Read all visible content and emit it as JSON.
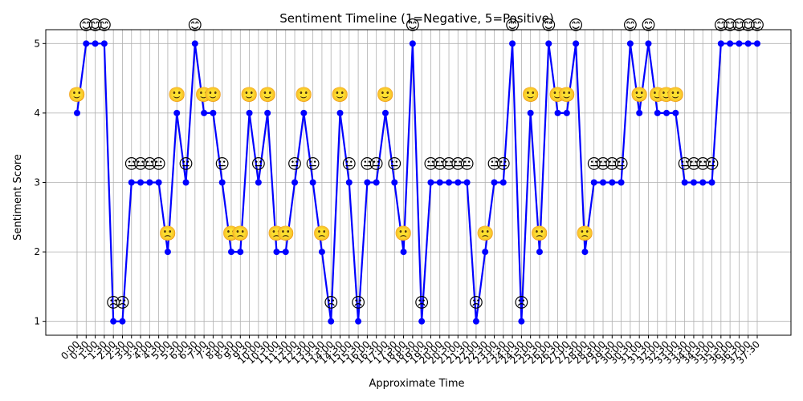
{
  "chart_data": {
    "type": "line",
    "title": "Sentiment Timeline (1=Negative, 5=Positive)",
    "xlabel": "Approximate Time",
    "ylabel": "Sentiment Score",
    "ylim": [
      0.8,
      5.2
    ],
    "yticks": [
      1,
      2,
      3,
      4,
      5
    ],
    "grid": true,
    "line_color": "#0000ff",
    "marker": "circle",
    "series": [
      {
        "name": "",
        "values": [
          4,
          5,
          5,
          5,
          1,
          1,
          3,
          3,
          3,
          3,
          2,
          4,
          3,
          5,
          4,
          4,
          3,
          2,
          2,
          4,
          3,
          4,
          2,
          2,
          3,
          4,
          3,
          2,
          1,
          4,
          3,
          1,
          3,
          3,
          4,
          3,
          2,
          5,
          1,
          3,
          3,
          3,
          3,
          3,
          1,
          2,
          3,
          3,
          5,
          1,
          4,
          2,
          5,
          4,
          4,
          5,
          2,
          3,
          3,
          3,
          3,
          5,
          4,
          5,
          4,
          4,
          4,
          3,
          3,
          3,
          3,
          5,
          5,
          5,
          5,
          5
        ]
      }
    ],
    "categories": [
      "0:00",
      "0:30",
      "1:00",
      "1:30",
      "2:00",
      "2:30",
      "3:00",
      "3:30",
      "4:00",
      "4:30",
      "5:00",
      "5:30",
      "6:00",
      "6:30",
      "7:00",
      "7:30",
      "8:00",
      "8:30",
      "9:00",
      "9:30",
      "10:00",
      "10:30",
      "11:00",
      "11:30",
      "12:00",
      "12:30",
      "13:00",
      "13:30",
      "14:00",
      "14:30",
      "15:00",
      "15:30",
      "16:00",
      "16:30",
      "17:00",
      "17:30",
      "18:00",
      "18:30",
      "19:00",
      "19:30",
      "20:00",
      "20:30",
      "21:00",
      "21:30",
      "22:00",
      "22:30",
      "23:00",
      "23:30",
      "24:00",
      "24:30",
      "25:00",
      "25:30",
      "26:00",
      "26:30",
      "27:00",
      "27:30",
      "28:00",
      "28:30",
      "29:00",
      "29:30",
      "30:00",
      "30:30",
      "31:00",
      "31:30",
      "32:00",
      "32:30",
      "33:00",
      "33:30",
      "34:00",
      "34:30",
      "35:00",
      "35:30",
      "36:00",
      "36:30",
      "37:00",
      "37:30"
    ],
    "annotations": {
      "1": "☹",
      "2": "🙁",
      "3": "😐",
      "4": "🙂",
      "5": "😊"
    }
  }
}
